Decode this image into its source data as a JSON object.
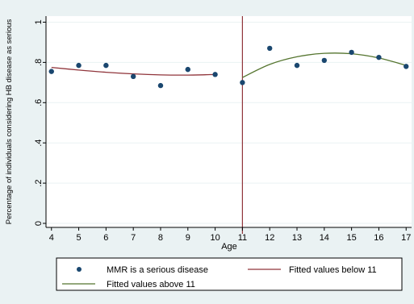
{
  "chart_data": {
    "type": "scatter",
    "title": "",
    "xlabel": "Age",
    "ylabel": "Percentage of individuals considering HB disease as serious",
    "xlim": [
      3.8,
      17.2
    ],
    "ylim": [
      -0.02,
      1.03
    ],
    "x_ticks": [
      4,
      5,
      6,
      7,
      8,
      9,
      10,
      11,
      12,
      13,
      14,
      15,
      16,
      17
    ],
    "x_tick_labels": [
      "4",
      "5",
      "6",
      "7",
      "8",
      "9",
      "10",
      "11",
      "12",
      "13",
      "14",
      "15",
      "16",
      "17"
    ],
    "y_ticks": [
      0,
      0.2,
      0.4,
      0.6,
      0.8,
      1
    ],
    "y_tick_labels": [
      "0",
      ".2",
      ".4",
      ".6",
      ".8",
      "1"
    ],
    "grid": "horizontal",
    "legend_position": "bottom",
    "cutoff_line_x": 11,
    "colors": {
      "points": "#1a476f",
      "fit_below": "#90353b",
      "fit_above": "#55752f",
      "cutoff": "#90353b",
      "plot_bg": "#ffffff",
      "outer_bg": "#eaf2f3",
      "grid": "#eaf2f3"
    },
    "series": [
      {
        "name": "MMR is a serious disease",
        "kind": "scatter",
        "points": [
          [
            4,
            0.755
          ],
          [
            5,
            0.785
          ],
          [
            6,
            0.785
          ],
          [
            7,
            0.73
          ],
          [
            8,
            0.685
          ],
          [
            9,
            0.765
          ],
          [
            10,
            0.74
          ],
          [
            11,
            0.7
          ],
          [
            12,
            0.87
          ],
          [
            13,
            0.785
          ],
          [
            14,
            0.81
          ],
          [
            15,
            0.85
          ],
          [
            16,
            0.825
          ],
          [
            17,
            0.78
          ]
        ]
      },
      {
        "name": "Fitted values below 11",
        "kind": "line",
        "points": [
          [
            4,
            0.775
          ],
          [
            5,
            0.762
          ],
          [
            6,
            0.751
          ],
          [
            7,
            0.743
          ],
          [
            8,
            0.738
          ],
          [
            9,
            0.737
          ],
          [
            10,
            0.74
          ]
        ]
      },
      {
        "name": "Fitted values above 11",
        "kind": "line",
        "points": [
          [
            11,
            0.725
          ],
          [
            12,
            0.79
          ],
          [
            13,
            0.828
          ],
          [
            14,
            0.845
          ],
          [
            15,
            0.843
          ],
          [
            16,
            0.822
          ],
          [
            17,
            0.785
          ]
        ]
      }
    ]
  }
}
